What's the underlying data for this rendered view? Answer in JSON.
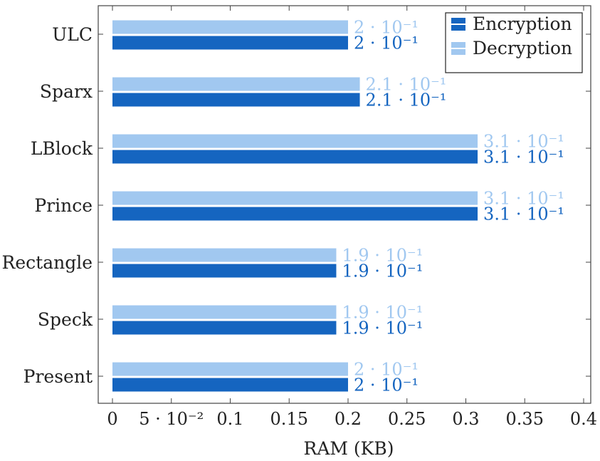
{
  "chart_data": {
    "type": "bar",
    "orientation": "horizontal",
    "categories": [
      "ULC",
      "Sparx",
      "LBlock",
      "Prince",
      "Rectangle",
      "Speck",
      "Present"
    ],
    "series": [
      {
        "name": "Encryption",
        "color": "#1565c0",
        "values": [
          0.2,
          0.21,
          0.31,
          0.31,
          0.19,
          0.19,
          0.2
        ],
        "labels": [
          "2 · 10⁻¹",
          "2.1 · 10⁻¹",
          "3.1 · 10⁻¹",
          "3.1 · 10⁻¹",
          "1.9 · 10⁻¹",
          "1.9 · 10⁻¹",
          "2 · 10⁻¹"
        ]
      },
      {
        "name": "Decryption",
        "color": "#a1c8f0",
        "values": [
          0.2,
          0.21,
          0.31,
          0.31,
          0.19,
          0.19,
          0.2
        ],
        "labels": [
          "2 · 10⁻¹",
          "2.1 · 10⁻¹",
          "3.1 · 10⁻¹",
          "3.1 · 10⁻¹",
          "1.9 · 10⁻¹",
          "1.9 · 10⁻¹",
          "2 · 10⁻¹"
        ]
      }
    ],
    "xlabel": "RAM (KB)",
    "xlim": [
      0,
      0.4
    ],
    "xticks": [
      0,
      0.05,
      0.1,
      0.15,
      0.2,
      0.25,
      0.3,
      0.35,
      0.4
    ],
    "xtick_labels": [
      "0",
      "5 · 10⁻²",
      "0.1",
      "0.15",
      "0.2",
      "0.25",
      "0.3",
      "0.35",
      "0.4"
    ],
    "grid": false,
    "legend": "top-right"
  }
}
